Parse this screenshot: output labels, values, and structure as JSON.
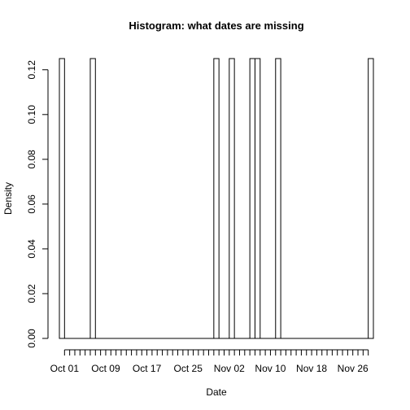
{
  "chart_data": {
    "type": "bar",
    "title": "Histogram: what dates are missing",
    "xlabel": "Date",
    "ylabel": "Density",
    "xlim": [
      "2015-09-30",
      "2015-11-30"
    ],
    "ylim": [
      0,
      0.125
    ],
    "y_ticks": [
      0.0,
      0.02,
      0.04,
      0.06,
      0.08,
      0.1,
      0.12
    ],
    "y_tick_labels": [
      "0.00",
      "0.02",
      "0.04",
      "0.06",
      "0.08",
      "0.10",
      "0.12"
    ],
    "x_ticks": [
      "2015-10-01",
      "2015-10-09",
      "2015-10-17",
      "2015-10-25",
      "2015-11-02",
      "2015-11-10",
      "2015-11-18",
      "2015-11-26"
    ],
    "x_tick_labels": [
      "Oct 01",
      "Oct 09",
      "Oct 17",
      "Oct 25",
      "Nov 02",
      "Nov 10",
      "Nov 18",
      "Nov 26"
    ],
    "bin_width_days": 1,
    "bins": [
      {
        "date": "2015-09-30",
        "density": 0.125
      },
      {
        "date": "2015-10-06",
        "density": 0.125
      },
      {
        "date": "2015-10-30",
        "density": 0.125
      },
      {
        "date": "2015-11-02",
        "density": 0.125
      },
      {
        "date": "2015-11-06",
        "density": 0.125
      },
      {
        "date": "2015-11-07",
        "density": 0.125
      },
      {
        "date": "2015-11-11",
        "density": 0.125
      },
      {
        "date": "2015-11-29",
        "density": 0.125
      }
    ],
    "grid": false,
    "legend": "none"
  }
}
